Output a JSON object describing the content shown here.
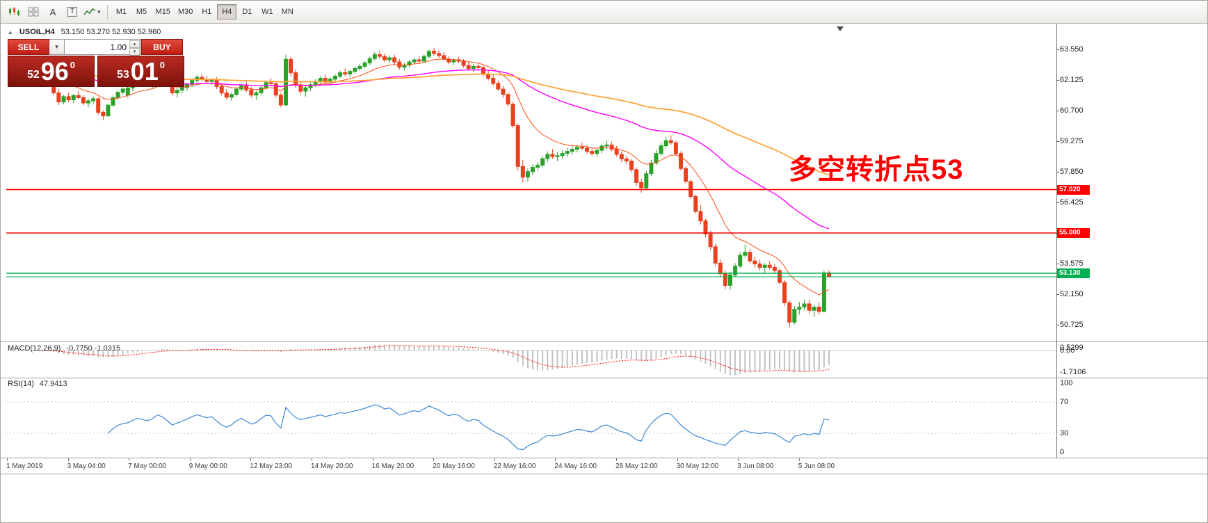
{
  "colors": {
    "up": "#2aa22a",
    "down": "#e9401f",
    "ma_fast": "#ff4a12",
    "ma_mid": "#ff00ff",
    "ma_slow": "#ffa43b",
    "hline_red": "#ff0000",
    "hline_green": "#00b050",
    "macd_hist": "#c2c2c2",
    "macd_signal": "#ff0000",
    "rsi_line": "#3b86d6",
    "annotation": "#ff0000"
  },
  "glyphs": {
    "caret_down": "▾",
    "collapse_up": "▲",
    "spin_up": "▴",
    "spin_down": "▾"
  },
  "toolbar": {
    "icon_a": "A",
    "icon_t": "T",
    "timeframes": [
      "M1",
      "M5",
      "M15",
      "M30",
      "H1",
      "H4",
      "D1",
      "W1",
      "MN"
    ],
    "active_timeframe": "H4"
  },
  "symbol_bar": {
    "symbol": "USOIL,H4",
    "ohlc": "53.150 53.270 52.930 52.960"
  },
  "trade_panel": {
    "sell_label": "SELL",
    "buy_label": "BUY",
    "volume": "1.00",
    "bid": {
      "small": "52",
      "big": "96",
      "sup": "0"
    },
    "ask": {
      "small": "53",
      "big": "01",
      "sup": "0"
    }
  },
  "annotation": {
    "text": "多空转折点53"
  },
  "chart_data": {
    "type": "candlestick",
    "title": "USOIL,H4",
    "y_axis": {
      "min": 49.95,
      "max": 64.68,
      "ticks": [
        63.55,
        62.125,
        60.7,
        59.275,
        57.85,
        56.425,
        55.0,
        53.575,
        52.15,
        50.725
      ]
    },
    "candles": [
      [
        62.15,
        62.6,
        62.0,
        62.5
      ],
      [
        62.5,
        62.72,
        62.3,
        62.4
      ],
      [
        62.4,
        62.55,
        62.05,
        62.18
      ],
      [
        62.18,
        62.3,
        61.4,
        61.52
      ],
      [
        61.52,
        61.7,
        60.95,
        61.1
      ],
      [
        61.1,
        61.42,
        61.0,
        61.35
      ],
      [
        61.35,
        61.52,
        61.1,
        61.2
      ],
      [
        61.2,
        61.47,
        61.05,
        61.4
      ],
      [
        61.4,
        61.62,
        61.25,
        61.3
      ],
      [
        61.3,
        61.42,
        60.95,
        61.05
      ],
      [
        61.05,
        61.26,
        60.85,
        61.15
      ],
      [
        61.15,
        61.35,
        61.0,
        61.25
      ],
      [
        61.25,
        61.32,
        60.5,
        60.62
      ],
      [
        60.62,
        60.72,
        60.25,
        60.45
      ],
      [
        60.45,
        61.02,
        60.4,
        60.95
      ],
      [
        60.95,
        61.4,
        60.88,
        61.3
      ],
      [
        61.3,
        61.62,
        61.2,
        61.55
      ],
      [
        61.55,
        61.78,
        61.45,
        61.7
      ],
      [
        61.42,
        61.8,
        61.3,
        61.75
      ],
      [
        61.75,
        62.02,
        61.6,
        61.95
      ],
      [
        61.95,
        62.22,
        61.85,
        62.1
      ],
      [
        62.1,
        62.26,
        61.9,
        62.0
      ],
      [
        62.0,
        62.15,
        61.8,
        61.9
      ],
      [
        61.9,
        62.12,
        61.75,
        62.05
      ],
      [
        62.05,
        62.45,
        61.95,
        62.35
      ],
      [
        62.35,
        62.52,
        62.1,
        62.2
      ],
      [
        62.2,
        62.35,
        61.8,
        61.9
      ],
      [
        61.9,
        62.0,
        61.4,
        61.52
      ],
      [
        61.52,
        61.76,
        61.3,
        61.65
      ],
      [
        61.65,
        61.86,
        61.5,
        61.78
      ],
      [
        61.78,
        62.0,
        61.62,
        61.92
      ],
      [
        61.92,
        62.2,
        61.8,
        62.1
      ],
      [
        62.1,
        62.36,
        62.0,
        62.25
      ],
      [
        62.25,
        62.4,
        62.05,
        62.15
      ],
      [
        62.15,
        62.3,
        61.95,
        62.05
      ],
      [
        62.05,
        62.22,
        61.9,
        62.12
      ],
      [
        62.12,
        62.25,
        61.7,
        61.82
      ],
      [
        61.82,
        61.95,
        61.4,
        61.52
      ],
      [
        61.52,
        61.7,
        61.2,
        61.32
      ],
      [
        61.32,
        61.56,
        61.15,
        61.45
      ],
      [
        61.45,
        61.8,
        61.35,
        61.7
      ],
      [
        61.7,
        61.95,
        61.6,
        61.85
      ],
      [
        61.85,
        62.05,
        61.55,
        61.66
      ],
      [
        61.66,
        61.8,
        61.3,
        61.42
      ],
      [
        61.42,
        61.62,
        61.2,
        61.52
      ],
      [
        61.52,
        61.86,
        61.4,
        61.76
      ],
      [
        61.76,
        62.1,
        61.66,
        62.0
      ],
      [
        62.0,
        62.2,
        61.85,
        61.95
      ],
      [
        61.95,
        62.05,
        61.3,
        61.42
      ],
      [
        61.42,
        61.52,
        60.85,
        60.96
      ],
      [
        60.96,
        63.3,
        60.9,
        63.08
      ],
      [
        63.08,
        63.2,
        62.3,
        62.46
      ],
      [
        62.46,
        62.62,
        61.75,
        61.9
      ],
      [
        61.9,
        62.06,
        61.45,
        61.6
      ],
      [
        61.6,
        61.86,
        61.35,
        61.76
      ],
      [
        61.76,
        62.0,
        61.6,
        61.9
      ],
      [
        61.9,
        62.16,
        61.8,
        62.05
      ],
      [
        62.05,
        62.3,
        61.95,
        62.2
      ],
      [
        62.2,
        62.36,
        61.9,
        62.02
      ],
      [
        62.02,
        62.26,
        61.86,
        62.16
      ],
      [
        62.16,
        62.4,
        62.05,
        62.3
      ],
      [
        62.3,
        62.56,
        62.2,
        62.46
      ],
      [
        62.46,
        62.66,
        62.3,
        62.4
      ],
      [
        62.4,
        62.6,
        62.25,
        62.52
      ],
      [
        62.52,
        62.76,
        62.42,
        62.66
      ],
      [
        62.66,
        62.86,
        62.55,
        62.76
      ],
      [
        62.76,
        63.0,
        62.66,
        62.92
      ],
      [
        62.92,
        63.22,
        62.82,
        63.12
      ],
      [
        63.12,
        63.42,
        63.02,
        63.3
      ],
      [
        63.3,
        63.5,
        63.1,
        63.22
      ],
      [
        63.22,
        63.36,
        62.95,
        63.06
      ],
      [
        63.06,
        63.26,
        62.9,
        63.16
      ],
      [
        63.16,
        63.3,
        62.85,
        62.96
      ],
      [
        62.96,
        63.1,
        62.6,
        62.72
      ],
      [
        62.72,
        62.92,
        62.55,
        62.82
      ],
      [
        62.82,
        63.06,
        62.7,
        62.96
      ],
      [
        62.96,
        63.16,
        62.86,
        63.06
      ],
      [
        63.06,
        63.22,
        62.9,
        63.0
      ],
      [
        63.0,
        63.32,
        62.9,
        63.22
      ],
      [
        63.22,
        63.56,
        63.12,
        63.46
      ],
      [
        63.46,
        63.62,
        63.26,
        63.36
      ],
      [
        63.36,
        63.5,
        63.15,
        63.26
      ],
      [
        63.26,
        63.4,
        63.0,
        63.1
      ],
      [
        63.1,
        63.22,
        62.85,
        62.96
      ],
      [
        62.96,
        63.16,
        62.8,
        63.06
      ],
      [
        63.06,
        63.2,
        62.9,
        63.0
      ],
      [
        63.0,
        63.1,
        62.7,
        62.8
      ],
      [
        62.8,
        62.96,
        62.55,
        62.66
      ],
      [
        62.66,
        62.86,
        62.5,
        62.76
      ],
      [
        62.76,
        62.9,
        62.6,
        62.7
      ],
      [
        62.7,
        62.8,
        62.3,
        62.4
      ],
      [
        62.4,
        62.56,
        62.1,
        62.2
      ],
      [
        62.2,
        62.36,
        61.85,
        61.96
      ],
      [
        61.96,
        62.1,
        61.6,
        61.7
      ],
      [
        61.7,
        61.85,
        61.3,
        61.45
      ],
      [
        61.45,
        61.56,
        60.9,
        61.0
      ],
      [
        61.0,
        61.1,
        59.9,
        60.0
      ],
      [
        60.0,
        60.1,
        57.9,
        58.1
      ],
      [
        58.1,
        58.4,
        57.35,
        57.6
      ],
      [
        57.6,
        58.0,
        57.4,
        57.86
      ],
      [
        57.86,
        58.2,
        57.7,
        58.06
      ],
      [
        58.06,
        58.3,
        57.9,
        58.16
      ],
      [
        58.16,
        58.6,
        58.05,
        58.46
      ],
      [
        58.46,
        58.8,
        58.3,
        58.66
      ],
      [
        58.66,
        58.9,
        58.45,
        58.56
      ],
      [
        58.56,
        58.76,
        58.35,
        58.6
      ],
      [
        58.6,
        58.86,
        58.45,
        58.7
      ],
      [
        58.7,
        58.96,
        58.55,
        58.8
      ],
      [
        58.8,
        59.06,
        58.65,
        58.9
      ],
      [
        58.9,
        59.1,
        58.75,
        59.0
      ],
      [
        59.0,
        59.2,
        58.85,
        58.95
      ],
      [
        58.95,
        59.1,
        58.7,
        58.8
      ],
      [
        58.8,
        58.95,
        58.6,
        58.7
      ],
      [
        58.7,
        58.9,
        58.55,
        58.85
      ],
      [
        58.85,
        59.16,
        58.7,
        59.05
      ],
      [
        59.05,
        59.3,
        58.9,
        59.1
      ],
      [
        59.1,
        59.25,
        58.8,
        58.9
      ],
      [
        58.9,
        59.05,
        58.55,
        58.66
      ],
      [
        58.66,
        58.8,
        58.3,
        58.45
      ],
      [
        58.45,
        58.6,
        58.2,
        58.35
      ],
      [
        58.35,
        58.45,
        57.8,
        57.95
      ],
      [
        57.95,
        58.05,
        57.2,
        57.35
      ],
      [
        57.35,
        57.52,
        56.88,
        57.1
      ],
      [
        57.1,
        57.9,
        57.0,
        57.76
      ],
      [
        57.76,
        58.4,
        57.65,
        58.26
      ],
      [
        58.26,
        58.86,
        58.15,
        58.7
      ],
      [
        58.7,
        59.2,
        58.6,
        59.06
      ],
      [
        59.06,
        59.46,
        58.95,
        59.3
      ],
      [
        59.3,
        59.56,
        59.1,
        59.2
      ],
      [
        59.2,
        59.3,
        58.6,
        58.7
      ],
      [
        58.7,
        58.8,
        57.9,
        58.0
      ],
      [
        58.0,
        58.1,
        57.3,
        57.4
      ],
      [
        57.4,
        57.5,
        56.6,
        56.7
      ],
      [
        56.7,
        56.8,
        55.9,
        56.0
      ],
      [
        56.0,
        56.3,
        55.4,
        55.56
      ],
      [
        55.56,
        55.66,
        54.8,
        54.95
      ],
      [
        54.95,
        55.1,
        54.2,
        54.36
      ],
      [
        54.36,
        54.5,
        53.45,
        53.6
      ],
      [
        53.6,
        53.76,
        52.95,
        53.1
      ],
      [
        53.1,
        53.26,
        52.4,
        52.56
      ],
      [
        52.56,
        53.2,
        52.35,
        53.05
      ],
      [
        53.05,
        53.6,
        52.95,
        53.46
      ],
      [
        53.46,
        54.1,
        53.35,
        53.96
      ],
      [
        53.96,
        54.46,
        53.85,
        54.1
      ],
      [
        54.1,
        54.26,
        53.6,
        53.7
      ],
      [
        53.7,
        53.9,
        53.4,
        53.56
      ],
      [
        53.56,
        53.76,
        53.25,
        53.4
      ],
      [
        53.4,
        53.6,
        53.15,
        53.5
      ],
      [
        53.5,
        53.7,
        53.3,
        53.4
      ],
      [
        53.4,
        53.56,
        53.1,
        53.25
      ],
      [
        53.25,
        53.36,
        52.6,
        52.7
      ],
      [
        52.7,
        52.8,
        51.6,
        51.75
      ],
      [
        51.75,
        51.85,
        50.6,
        50.85
      ],
      [
        50.85,
        51.6,
        50.75,
        51.45
      ],
      [
        51.45,
        51.8,
        51.2,
        51.55
      ],
      [
        51.55,
        51.9,
        51.4,
        51.7
      ],
      [
        51.7,
        51.9,
        51.25,
        51.4
      ],
      [
        51.4,
        51.66,
        51.1,
        51.55
      ],
      [
        51.55,
        51.76,
        51.2,
        51.35
      ],
      [
        51.35,
        53.27,
        51.3,
        53.15
      ],
      [
        53.15,
        53.27,
        52.93,
        52.96
      ]
    ],
    "overlays": [
      {
        "name": "ma-fast",
        "period": 13,
        "color": "#ff4a12",
        "width": 1
      },
      {
        "name": "ma-mid",
        "period": 55,
        "color": "#ff00ff",
        "width": 1.4
      },
      {
        "name": "ma-slow",
        "period": 120,
        "color": "#ffa43b",
        "width": 1.8
      }
    ],
    "hlines": [
      {
        "price": 57.02,
        "color": "#ff0000",
        "width": 1.6,
        "label": "57.020"
      },
      {
        "price": 55.0,
        "color": "#ff0000",
        "width": 1.6,
        "label": "55.000"
      },
      {
        "price": 53.13,
        "color": "#00b050",
        "width": 1.6,
        "label": "53.130"
      },
      {
        "price": 52.96,
        "color": "#00b050",
        "width": 1,
        "label": null
      }
    ],
    "indicators": {
      "macd": {
        "label": "MACD(12,26,9)",
        "values_text": "-0.7750 -1.0315",
        "fast": 12,
        "slow": 26,
        "signal": 9,
        "axis": [
          "0.5299",
          "0.00",
          "-1.7106"
        ]
      },
      "rsi": {
        "label": "RSI(14)",
        "value_text": "47.9413",
        "period": 14,
        "levels": [
          70,
          30
        ],
        "axis": [
          {
            "v": 100,
            "t": "100"
          },
          {
            "v": 70,
            "t": "70"
          },
          {
            "v": 30,
            "t": "30"
          },
          {
            "v": 0,
            "t": "0"
          }
        ]
      }
    },
    "x_labels": [
      "1 May 2019",
      "3 May 04:00",
      "7 May 00:00",
      "9 May 00:00",
      "12 May 23:00",
      "14 May 20:00",
      "16 May 20:00",
      "20 May 16:00",
      "22 May 16:00",
      "24 May 16:00",
      "28 May 12:00",
      "30 May 12:00",
      "3 Jun 08:00",
      "5 Jun 08:00"
    ]
  }
}
